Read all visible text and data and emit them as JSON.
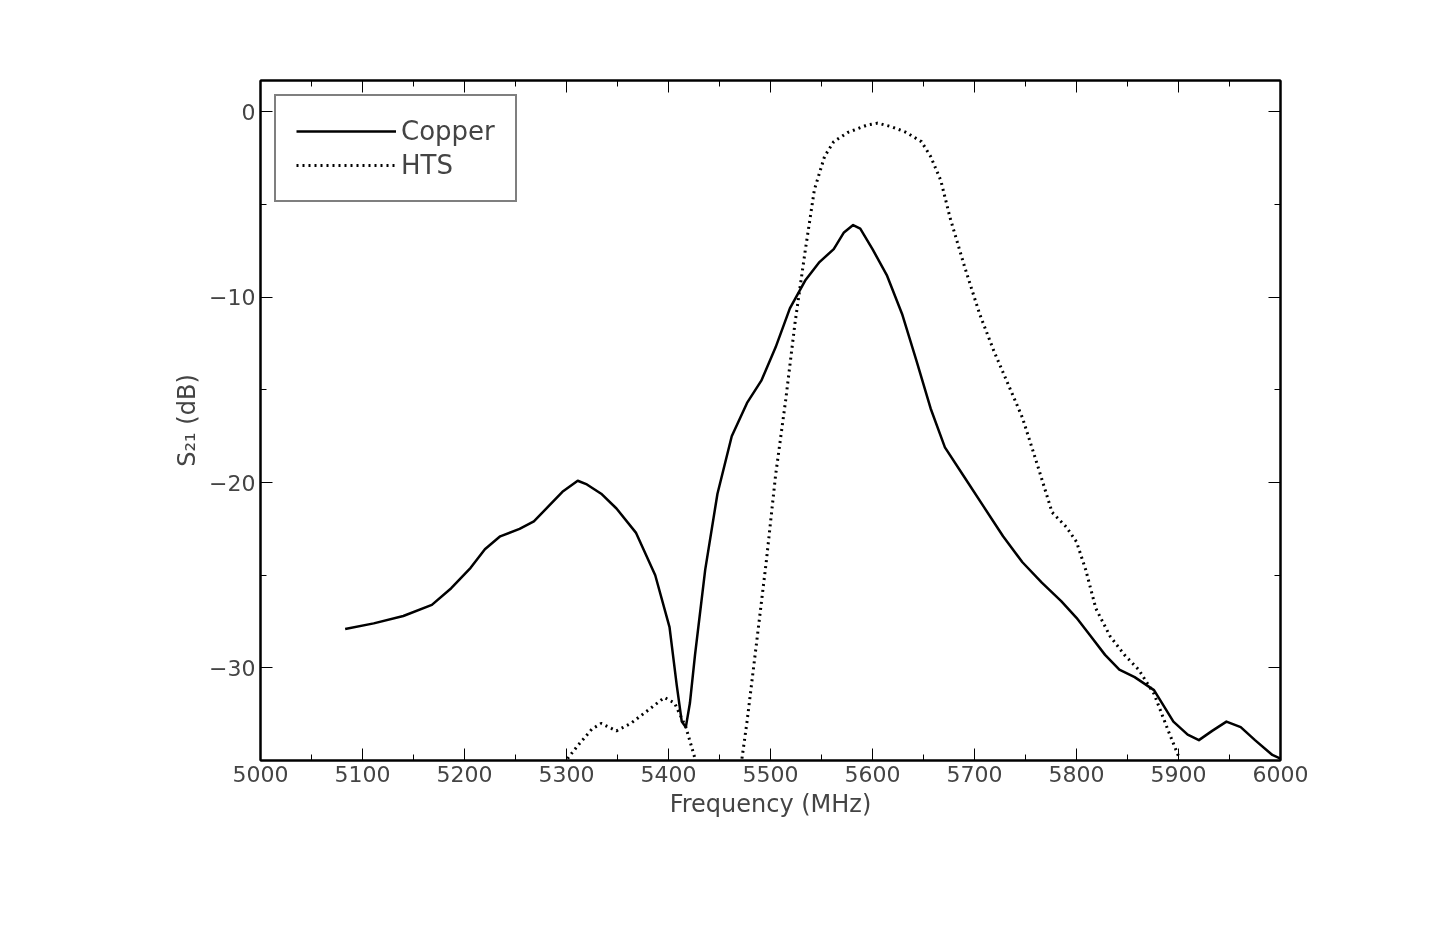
{
  "chart_data": {
    "type": "line",
    "xlabel": "Frequency (MHz)",
    "ylabel": "S₂₁ (dB)",
    "xlim": [
      5000,
      6000
    ],
    "ylim": [
      -35,
      1.7
    ],
    "xticks": [
      5000,
      5100,
      5200,
      5300,
      5400,
      5500,
      5600,
      5700,
      5800,
      5900,
      6000
    ],
    "yticks": [
      -30,
      -20,
      -10,
      0
    ],
    "grid": false,
    "legend": "top left",
    "series": [
      {
        "name": "Copper",
        "color": "#000000",
        "line_style": "solid",
        "x": [
          5083,
          5111,
          5140,
          5168,
          5187,
          5206,
          5220,
          5235,
          5254,
          5268,
          5282,
          5296,
          5311,
          5320,
          5334,
          5349,
          5368,
          5387,
          5401,
          5408,
          5413,
          5417,
          5421,
          5426,
          5436,
          5448,
          5462,
          5477,
          5491,
          5505,
          5519,
          5534,
          5548,
          5562,
          5572,
          5581,
          5588,
          5600,
          5614,
          5629,
          5643,
          5657,
          5671,
          5690,
          5709,
          5728,
          5747,
          5766,
          5785,
          5800,
          5814,
          5828,
          5842,
          5857,
          5876,
          5895,
          5909,
          5920,
          5933,
          5947,
          5961,
          5975,
          5992,
          6000
        ],
        "values": [
          -27.9,
          -27.6,
          -27.2,
          -26.6,
          -25.7,
          -24.6,
          -23.6,
          -22.9,
          -22.5,
          -22.1,
          -21.3,
          -20.5,
          -19.9,
          -20.1,
          -20.6,
          -21.4,
          -22.7,
          -25.0,
          -27.8,
          -30.9,
          -32.9,
          -33.2,
          -31.9,
          -29.3,
          -24.7,
          -20.6,
          -17.5,
          -15.7,
          -14.5,
          -12.7,
          -10.6,
          -9.1,
          -8.1,
          -7.4,
          -6.5,
          -6.1,
          -6.3,
          -7.4,
          -8.8,
          -10.9,
          -13.4,
          -16.0,
          -18.1,
          -19.7,
          -21.3,
          -22.9,
          -24.3,
          -25.4,
          -26.4,
          -27.3,
          -28.3,
          -29.3,
          -30.1,
          -30.5,
          -31.2,
          -32.9,
          -33.6,
          -33.9,
          -33.4,
          -32.9,
          -33.2,
          -33.9,
          -34.7,
          -34.9
        ]
      },
      {
        "name": "HTS",
        "color": "#000000",
        "line_style": "dotted",
        "x": [
          5301,
          5311,
          5325,
          5334,
          5349,
          5363,
          5382,
          5396,
          5406,
          5417,
          5426,
          5449,
          5472,
          5477,
          5486,
          5496,
          5505,
          5515,
          5524,
          5534,
          5543,
          5553,
          5562,
          5576,
          5595,
          5605,
          5619,
          5633,
          5648,
          5657,
          5667,
          5676,
          5690,
          5705,
          5719,
          5733,
          5747,
          5762,
          5776,
          5790,
          5800,
          5809,
          5819,
          5833,
          5847,
          5861,
          5876,
          5890,
          5901
        ],
        "values": [
          -34.9,
          -34.2,
          -33.3,
          -33.0,
          -33.4,
          -33.0,
          -32.2,
          -31.6,
          -31.9,
          -33.2,
          -34.9,
          null,
          -34.9,
          -32.9,
          -28.8,
          -24.2,
          -19.6,
          -15.5,
          -11.4,
          -7.5,
          -4.2,
          -2.4,
          -1.6,
          -1.1,
          -0.7,
          -0.6,
          -0.8,
          -1.1,
          -1.6,
          -2.4,
          -3.7,
          -5.7,
          -8.3,
          -10.9,
          -12.9,
          -14.7,
          -16.5,
          -19.1,
          -21.6,
          -22.4,
          -23.2,
          -24.7,
          -26.8,
          -28.3,
          -29.3,
          -30.1,
          -31.4,
          -33.4,
          -34.9
        ]
      }
    ]
  }
}
